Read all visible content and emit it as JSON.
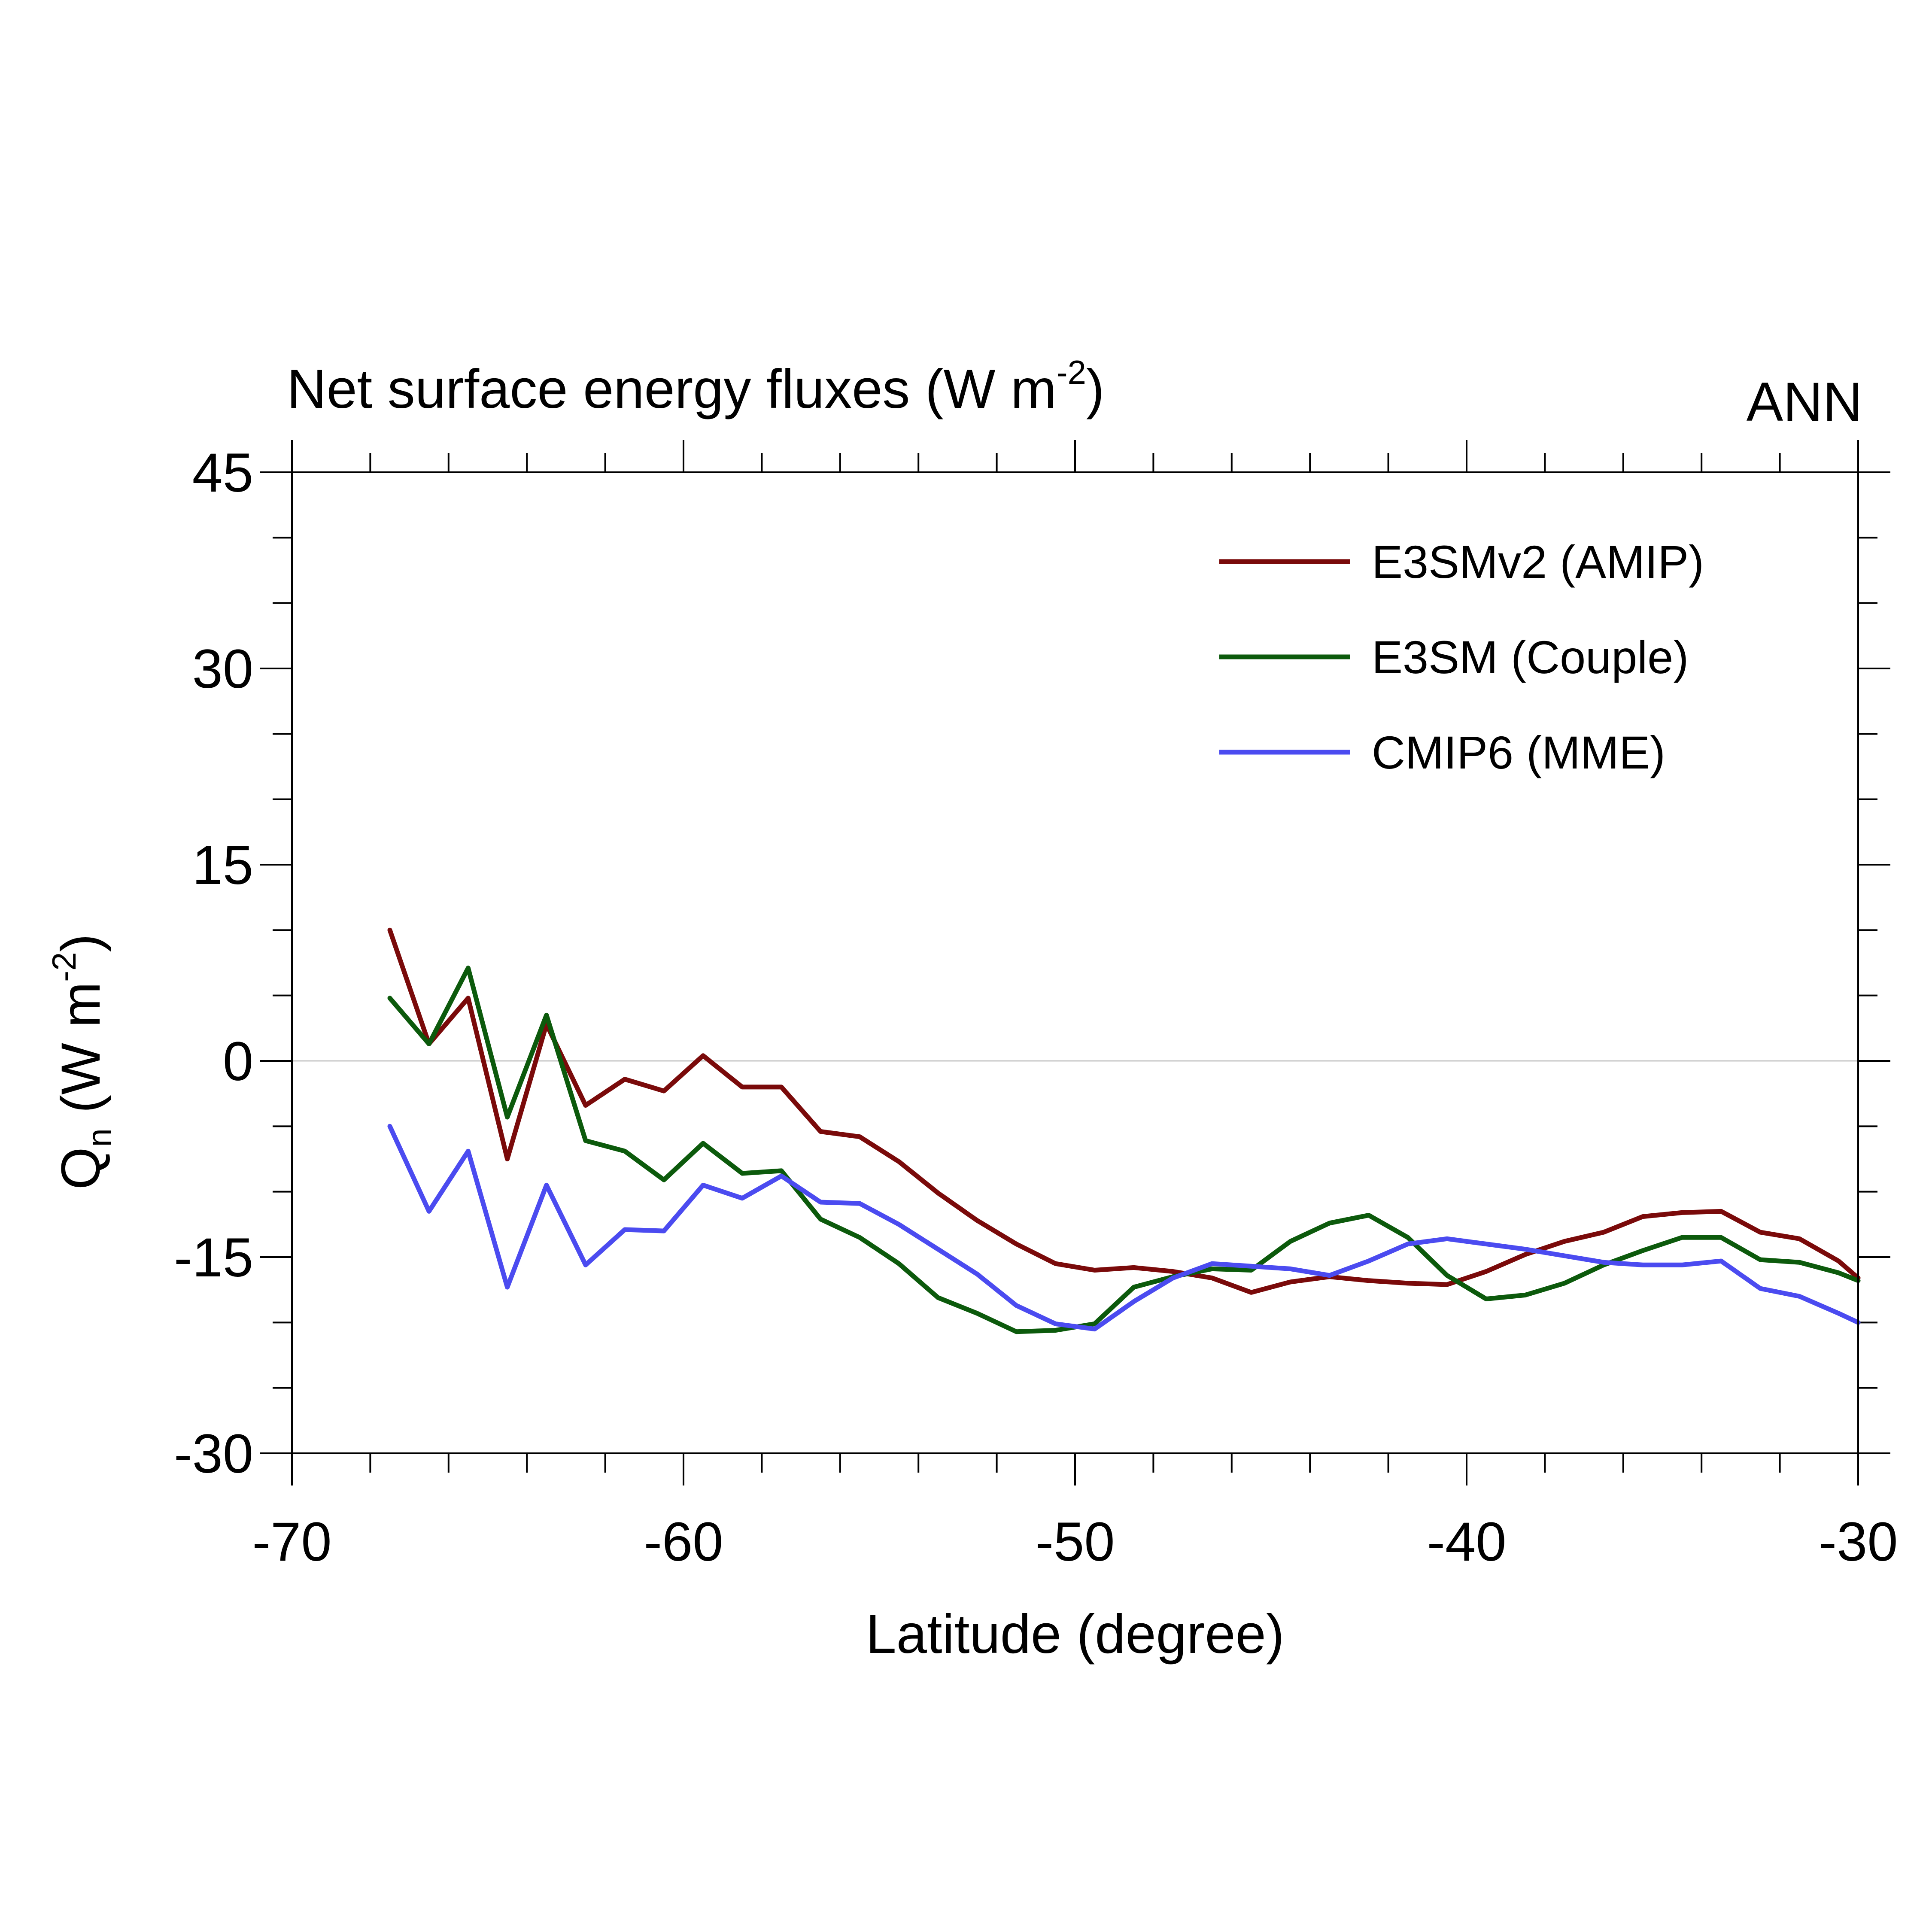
{
  "chart_data": {
    "type": "line",
    "title": "Net surface energy fluxes (W m",
    "title_sup": "-2",
    "title_close": ")",
    "season_label": "ANN",
    "xlabel": "Latitude (degree)",
    "ylabel_q": "Q",
    "ylabel_sub": "n",
    "ylabel_rest": " (W m",
    "ylabel_sup": "-2",
    "ylabel_close": ")",
    "xlim": [
      -70,
      -30
    ],
    "ylim": [
      -30,
      45
    ],
    "x_ticks": [
      -70,
      -60,
      -50,
      -40,
      -30
    ],
    "x_tick_labels": [
      "-70",
      "-60",
      "-50",
      "-40",
      "-30"
    ],
    "y_ticks": [
      -30,
      -15,
      0,
      15,
      30,
      45
    ],
    "y_tick_labels": [
      "-30",
      "-15",
      "0",
      "15",
      "30",
      "45"
    ],
    "x_minor_step": 2,
    "y_minor_step": 5,
    "zero_line": true,
    "legend_position": "top-right",
    "x": [
      -67.5,
      -66.5,
      -65.5,
      -64.5,
      -63.5,
      -62.5,
      -61.5,
      -60.5,
      -59.5,
      -58.5,
      -57.5,
      -56.5,
      -55.5,
      -54.5,
      -53.5,
      -52.5,
      -51.5,
      -50.5,
      -49.5,
      -48.5,
      -47.5,
      -46.5,
      -45.5,
      -44.5,
      -43.5,
      -42.5,
      -41.5,
      -40.5,
      -39.5,
      -38.5,
      -37.5,
      -36.5,
      -35.5,
      -34.5,
      -33.5,
      -32.5,
      -31.5,
      -30.5,
      -30.0
    ],
    "series": [
      {
        "name": "E3SMv2 (AMIP)",
        "color": "#7a0a0a",
        "values": [
          10.0,
          1.3,
          4.8,
          -7.5,
          2.8,
          -3.4,
          -1.4,
          -2.3,
          0.4,
          -2.0,
          -2.0,
          -5.4,
          -5.8,
          -7.7,
          -10.1,
          -12.2,
          -14.0,
          -15.5,
          -16.0,
          -15.8,
          -16.1,
          -16.6,
          -17.7,
          -16.9,
          -16.5,
          -16.8,
          -17.0,
          -17.1,
          -16.1,
          -14.8,
          -13.8,
          -13.1,
          -11.9,
          -11.6,
          -11.5,
          -13.1,
          -13.6,
          -15.3,
          -16.6
        ],
        "label_color": "#000000"
      },
      {
        "name": "E3SM (Couple)",
        "color": "#0c5a0c",
        "values": [
          4.8,
          1.3,
          7.1,
          -4.3,
          3.5,
          -6.1,
          -6.9,
          -9.1,
          -6.3,
          -8.6,
          -8.4,
          -12.1,
          -13.5,
          -15.5,
          -18.1,
          -19.3,
          -20.7,
          -20.6,
          -20.1,
          -17.3,
          -16.5,
          -15.9,
          -16.0,
          -13.8,
          -12.4,
          -11.8,
          -13.5,
          -16.4,
          -18.2,
          -17.9,
          -17.0,
          -15.6,
          -14.5,
          -13.5,
          -13.5,
          -15.2,
          -15.4,
          -16.2,
          -16.8
        ],
        "label_color": "#000000"
      },
      {
        "name": "CMIP6 (MME)",
        "color": "#4b4bf0",
        "values": [
          -5.0,
          -11.5,
          -6.9,
          -17.3,
          -9.5,
          -15.6,
          -12.9,
          -13.0,
          -9.5,
          -10.5,
          -8.8,
          -10.8,
          -10.9,
          -12.5,
          -14.4,
          -16.3,
          -18.7,
          -20.1,
          -20.5,
          -18.4,
          -16.6,
          -15.5,
          -15.7,
          -15.9,
          -16.4,
          -15.3,
          -14.0,
          -13.6,
          -14.0,
          -14.4,
          -14.9,
          -15.4,
          -15.6,
          -15.6,
          -15.3,
          -17.4,
          -18.0,
          -19.3,
          -20.0
        ],
        "label_color": "#000000"
      }
    ]
  }
}
